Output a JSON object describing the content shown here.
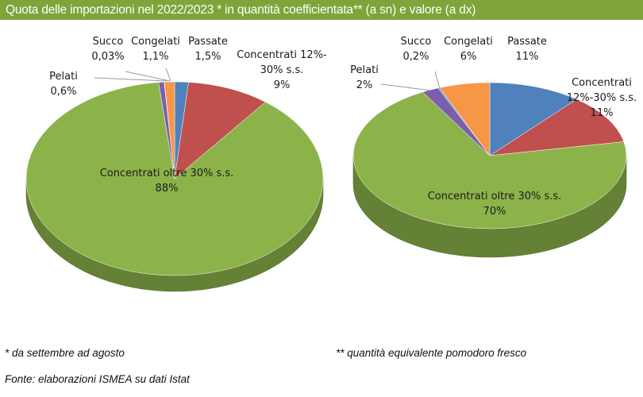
{
  "header": {
    "title": "Quota delle importazioni nel 2022/2023 * in quantità coefficientata** (a sn) e valore (a dx)"
  },
  "colors": {
    "header_bg": "#7ea43a",
    "Pelati": "#7b5fae",
    "Succo": "#4bacc6",
    "Congelati": "#f79646",
    "Passate": "#4f81bd",
    "Concentrati 12%-30%": "#c0504d",
    "Concentrati oltre 30%": "#8cb34a"
  },
  "chart_data": [
    {
      "type": "pie",
      "title": "",
      "unit": "%",
      "slices": [
        {
          "category": "Passate",
          "value": 1.5,
          "label_lines": [
            "Passate",
            "1,5%"
          ]
        },
        {
          "category": "Concentrati 12%-30%",
          "value": 9,
          "label_lines": [
            "Concentrati 12%-",
            "30% s.s.",
            "9%"
          ]
        },
        {
          "category": "Concentrati oltre 30%",
          "value": 88,
          "label_lines": [
            "Concentrati oltre 30% s.s.",
            "88%"
          ]
        },
        {
          "category": "Pelati",
          "value": 0.6,
          "label_lines": [
            "Pelati",
            "0,6%"
          ]
        },
        {
          "category": "Succo",
          "value": 0.03,
          "label_lines": [
            "Succo",
            "0,03%"
          ]
        },
        {
          "category": "Congelati",
          "value": 1.1,
          "label_lines": [
            "Congelati",
            "1,1%"
          ]
        }
      ]
    },
    {
      "type": "pie",
      "title": "",
      "unit": "%",
      "slices": [
        {
          "category": "Passate",
          "value": 11,
          "label_lines": [
            "Passate",
            "11%"
          ]
        },
        {
          "category": "Concentrati 12%-30%",
          "value": 11,
          "label_lines": [
            "Concentrati",
            "12%-30% s.s.",
            "11%"
          ]
        },
        {
          "category": "Concentrati oltre 30%",
          "value": 70,
          "label_lines": [
            "Concentrati oltre 30% s.s.",
            "70%"
          ]
        },
        {
          "category": "Pelati",
          "value": 2,
          "label_lines": [
            "Pelati",
            "2%"
          ]
        },
        {
          "category": "Succo",
          "value": 0.2,
          "label_lines": [
            "Succo",
            "0,2%"
          ]
        },
        {
          "category": "Congelati",
          "value": 6,
          "label_lines": [
            "Congelati",
            "6%"
          ]
        }
      ]
    }
  ],
  "footnotes": {
    "period": "* da settembre ad agosto",
    "quantity": "** quantità equivalente pomodoro fresco",
    "source": "Fonte: elaborazioni ISMEA su dati Istat"
  }
}
